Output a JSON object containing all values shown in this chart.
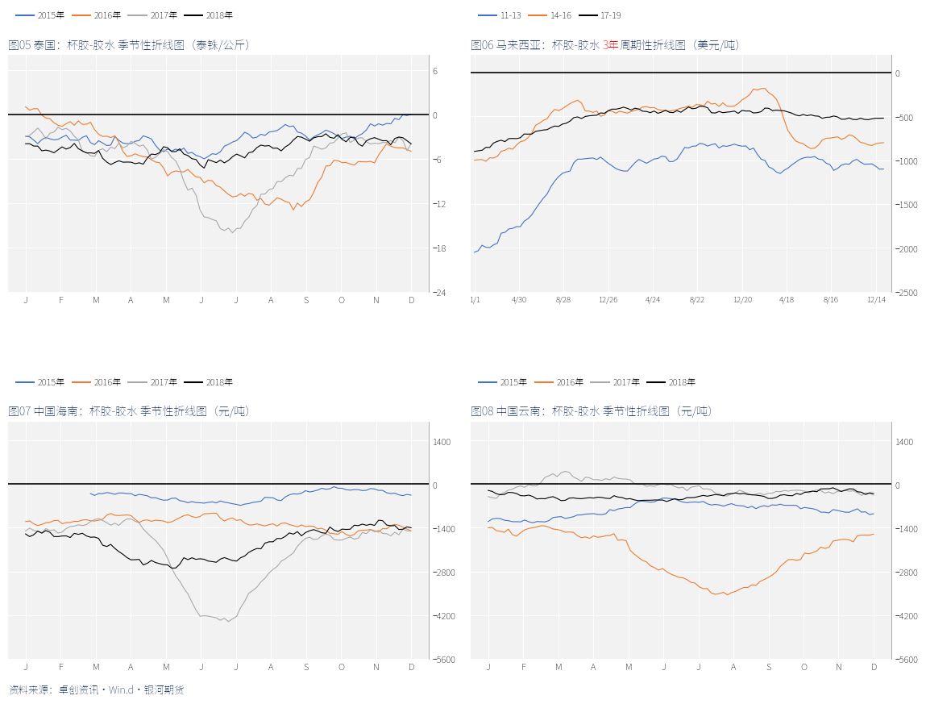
{
  "title05": "图05 泰国：杯胶-胶水 季节性折线图（泰铢/公斤）",
  "title07": "图07 中国海南：杯胶-胶水 季节性折线图（元/吨）",
  "title08": "图08 中国云南：杯胶-胶水 季节性折线图（元/吨）",
  "title06_prefix": "图06 马来西亚：杯胶-胶水 ",
  "title06_red": "3年",
  "title06_suffix": "周期性折线图（美元/吨）",
  "footer": "资料来源：卓创资讯·Win.d·银河期货",
  "colors": {
    "blue": "#4472C4",
    "orange": "#ED7D31",
    "gray": "#A9A9A9",
    "black": "#000000",
    "dark_navy": "#1F3864",
    "red": "#FF0000"
  },
  "bg_color": "#FFFFFF",
  "plot_bg": "#F2F2F2",
  "months_x": [
    "J",
    "F",
    "M",
    "A",
    "M",
    "J",
    "J",
    "A",
    "S",
    "O",
    "N",
    "D"
  ],
  "panel06_x": [
    "1/1",
    "4/30",
    "8/28",
    "12/26",
    "4/24",
    "8/22",
    "12/20",
    "4/18",
    "8/16",
    "12/14"
  ],
  "panel05_ylim": [
    -24,
    8
  ],
  "panel05_yticks": [
    6,
    0,
    -6,
    -12,
    -18,
    -24
  ],
  "panel06_ylim": [
    -2500,
    200
  ],
  "panel06_yticks": [
    0,
    -500,
    -1000,
    -1500,
    -2000,
    -2500
  ],
  "panel07_ylim": [
    -5600,
    2000
  ],
  "panel07_yticks": [
    1400,
    0,
    -1400,
    -2800,
    -4200,
    -5600
  ],
  "panel08_ylim": [
    -5600,
    2000
  ],
  "panel08_yticks": [
    1400,
    0,
    -1400,
    -2800,
    -4200,
    -5600
  ],
  "legend05": [
    "2015年",
    "2016年",
    "2017年",
    "2018年"
  ],
  "legend06": [
    "11-13",
    "14-16",
    "17-19"
  ],
  "legend07": [
    "2015年",
    "2016年",
    "2017年",
    "2018年"
  ],
  "legend08": [
    "2015年",
    "2016年",
    "2017年",
    "2018年"
  ]
}
